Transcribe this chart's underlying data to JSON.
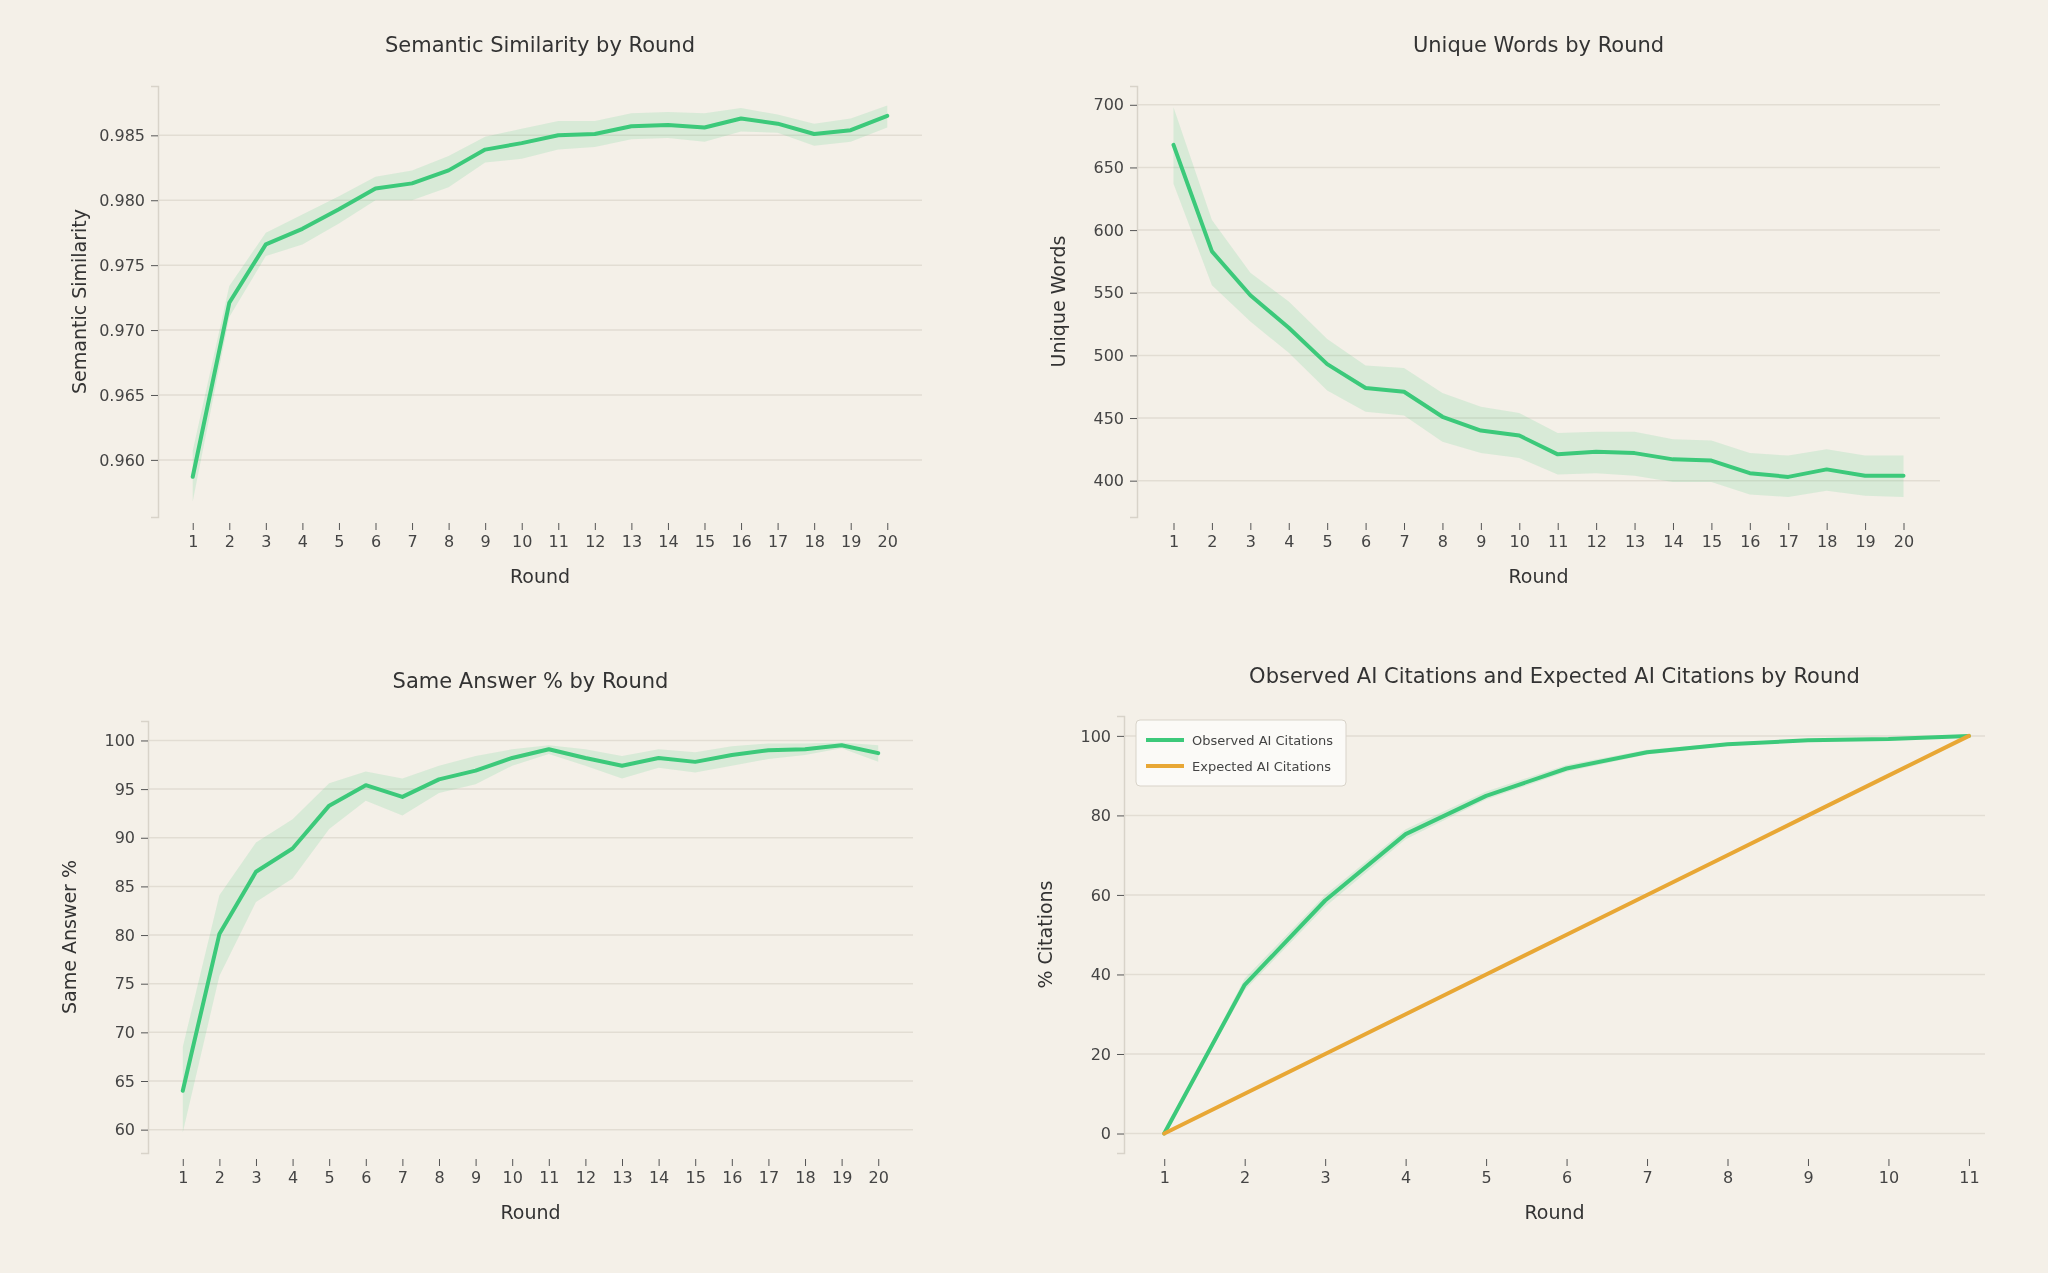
{
  "chart_data": [
    {
      "type": "line",
      "title": "Semantic Similarity by Round",
      "xlabel": "Round",
      "ylabel": "Semantic Similarity",
      "x": [
        1,
        2,
        3,
        4,
        5,
        6,
        7,
        8,
        9,
        10,
        11,
        12,
        13,
        14,
        15,
        16,
        17,
        18,
        19,
        20
      ],
      "xlim": [
        0.05,
        20.95
      ],
      "xticks": [
        1,
        2,
        3,
        4,
        5,
        6,
        7,
        8,
        9,
        10,
        11,
        12,
        13,
        14,
        15,
        16,
        17,
        18,
        19,
        20
      ],
      "ylim": [
        0.9556,
        0.9888
      ],
      "yticks": [
        {
          "value": 0.96,
          "label": "0.960"
        },
        {
          "value": 0.965,
          "label": "0.965"
        },
        {
          "value": 0.97,
          "label": "0.970"
        },
        {
          "value": 0.975,
          "label": "0.975"
        },
        {
          "value": 0.98,
          "label": "0.980"
        },
        {
          "value": 0.985,
          "label": "0.985"
        }
      ],
      "grid": "y",
      "legend": false,
      "series": [
        {
          "color": "#3cc97a",
          "values": [
            0.9587,
            0.9721,
            0.9766,
            0.9778,
            0.9793,
            0.9809,
            0.9813,
            0.9823,
            0.9839,
            0.9844,
            0.985,
            0.9851,
            0.9857,
            0.9858,
            0.9856,
            0.9863,
            0.9859,
            0.9851,
            0.9854,
            0.9865
          ],
          "lower": [
            0.9568,
            0.971,
            0.9757,
            0.9766,
            0.9782,
            0.98,
            0.98,
            0.981,
            0.9829,
            0.9832,
            0.9839,
            0.9841,
            0.9847,
            0.9848,
            0.9845,
            0.9853,
            0.9852,
            0.9842,
            0.9845,
            0.9856
          ],
          "upper": [
            0.9607,
            0.9734,
            0.9775,
            0.9789,
            0.9803,
            0.9818,
            0.9823,
            0.9834,
            0.9849,
            0.9855,
            0.9861,
            0.9861,
            0.9867,
            0.9868,
            0.9867,
            0.9871,
            0.9866,
            0.9859,
            0.9863,
            0.9873
          ]
        }
      ]
    },
    {
      "type": "line",
      "title": "Unique Words by Round",
      "xlabel": "Round",
      "ylabel": "Unique Words",
      "x": [
        1,
        2,
        3,
        4,
        5,
        6,
        7,
        8,
        9,
        10,
        11,
        12,
        13,
        14,
        15,
        16,
        17,
        18,
        19,
        20
      ],
      "xlim": [
        0.05,
        20.95
      ],
      "xticks": [
        1,
        2,
        3,
        4,
        5,
        6,
        7,
        8,
        9,
        10,
        11,
        12,
        13,
        14,
        15,
        16,
        17,
        18,
        19,
        20
      ],
      "ylim": [
        371,
        715
      ],
      "yticks": [
        400,
        450,
        500,
        550,
        600,
        650,
        700
      ],
      "grid": "y",
      "legend": false,
      "series": [
        {
          "color": "#3cc97a",
          "values": [
            668,
            583,
            548,
            522,
            493,
            474,
            471,
            451,
            440,
            436,
            421,
            423,
            422,
            417,
            416,
            406,
            403,
            409,
            404,
            404
          ],
          "lower": [
            637,
            556,
            527,
            502,
            472,
            455,
            452,
            431,
            422,
            418,
            405,
            406,
            404,
            399,
            399,
            389,
            387,
            392,
            388,
            387
          ],
          "upper": [
            698,
            608,
            566,
            543,
            513,
            492,
            490,
            470,
            459,
            454,
            438,
            439,
            439,
            433,
            432,
            422,
            420,
            425,
            420,
            420
          ]
        }
      ]
    },
    {
      "type": "line",
      "title": "Same Answer % by Round",
      "xlabel": "Round",
      "ylabel": "Same Answer %",
      "x": [
        1,
        2,
        3,
        4,
        5,
        6,
        7,
        8,
        9,
        10,
        11,
        12,
        13,
        14,
        15,
        16,
        17,
        18,
        19,
        20
      ],
      "xlim": [
        0.05,
        20.95
      ],
      "xticks": [
        1,
        2,
        3,
        4,
        5,
        6,
        7,
        8,
        9,
        10,
        11,
        12,
        13,
        14,
        15,
        16,
        17,
        18,
        19,
        20
      ],
      "ylim": [
        57.6,
        102
      ],
      "yticks": [
        60,
        65,
        70,
        75,
        80,
        85,
        90,
        95,
        100
      ],
      "grid": "y",
      "legend": false,
      "series": [
        {
          "color": "#3cc97a",
          "values": [
            64,
            80.1,
            86.5,
            88.9,
            93.3,
            95.4,
            94.2,
            96,
            96.9,
            98.2,
            99.1,
            98.2,
            97.4,
            98.2,
            97.8,
            98.5,
            99,
            99.1,
            99.5,
            98.7
          ],
          "lower": [
            59.7,
            75.8,
            83.4,
            85.8,
            90.9,
            93.8,
            92.3,
            94.6,
            95.5,
            97.4,
            98.6,
            97.4,
            96.1,
            97.2,
            96.7,
            97.4,
            98.1,
            98.5,
            99.2,
            97.8
          ],
          "upper": [
            68.5,
            84.1,
            89.5,
            91.9,
            95.6,
            96.8,
            96.1,
            97.4,
            98.4,
            99.1,
            99.5,
            99.1,
            98.4,
            99.1,
            98.8,
            99.4,
            99.7,
            99.7,
            99.8,
            99.5
          ]
        }
      ]
    },
    {
      "type": "line",
      "title": "Observed AI Citations and Expected AI Citations by Round",
      "xlabel": "Round",
      "ylabel": "% Citations",
      "x": [
        1,
        2,
        3,
        4,
        5,
        6,
        7,
        8,
        9,
        10,
        11
      ],
      "xlim": [
        0.5,
        11.2
      ],
      "xticks": [
        1,
        2,
        3,
        4,
        5,
        6,
        7,
        8,
        9,
        10,
        11
      ],
      "ylim": [
        -4.9,
        105
      ],
      "yticks": [
        0,
        20,
        40,
        60,
        80,
        100
      ],
      "grid": "y",
      "legend": "top left",
      "series": [
        {
          "name": "Observed AI Citations",
          "color": "#3cc97a",
          "values": [
            0,
            37.4,
            58.6,
            75.3,
            84.9,
            91.8,
            95.9,
            97.9,
            98.9,
            99.2,
            100
          ],
          "lower": [
            0,
            36,
            57,
            74,
            84,
            91,
            95.3,
            97.5,
            98.6,
            99,
            100
          ],
          "upper": [
            0,
            39,
            60,
            76.5,
            86,
            92.7,
            96.5,
            98.3,
            99.2,
            99.4,
            100
          ]
        },
        {
          "name": "Expected AI Citations",
          "color": "#e8a735",
          "values": [
            0,
            10,
            20,
            30,
            40,
            50,
            60,
            70,
            80,
            90,
            100
          ]
        }
      ]
    }
  ]
}
